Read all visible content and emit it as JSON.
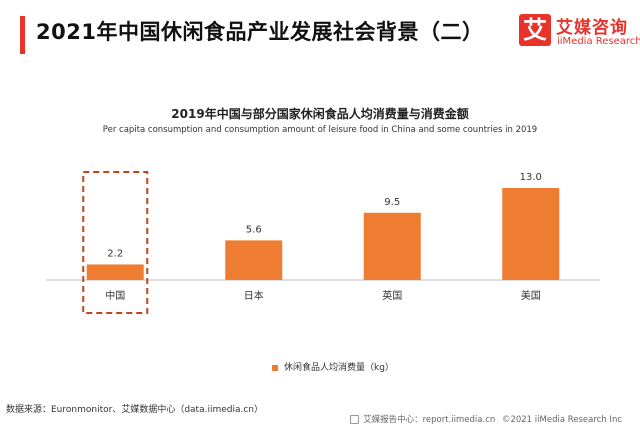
{
  "header": {
    "title": "2021年中国休闲食品产业发展社会背景（二）"
  },
  "logo": {
    "mark": "艾",
    "name_cn": "艾媒咨询",
    "name_en": "iiMedia Research"
  },
  "colors": {
    "accent": "#e8322a",
    "bar": "#ee7d31",
    "highlight_border": "#c0451b",
    "axis": "#bfbfbf"
  },
  "chart_data": {
    "type": "bar",
    "title": "2019年中国与部分国家休闲食品人均消费量与消费金额",
    "subtitle": "Per capita consumption and consumption amount of leisure food in China and some countries in 2019",
    "categories": [
      "中国",
      "日本",
      "英国",
      "美国"
    ],
    "series": [
      {
        "name": "休闲食品人均消费量（kg）",
        "values": [
          2.2,
          5.6,
          9.5,
          13.0
        ]
      }
    ],
    "value_labels": [
      "2.2",
      "5.6",
      "9.5",
      "13.0"
    ],
    "highlighted_category": "中国",
    "ylim": [
      0,
      13.0
    ],
    "grid": false,
    "legend_position": "bottom-center"
  },
  "footer": {
    "source": "数据来源：Euronmonitor、艾媒数据中心（data.iimedia.cn）",
    "report": "艾媒报告中心：report.iimedia.cn",
    "copyright": "©2021  iiMedia Research  Inc"
  }
}
